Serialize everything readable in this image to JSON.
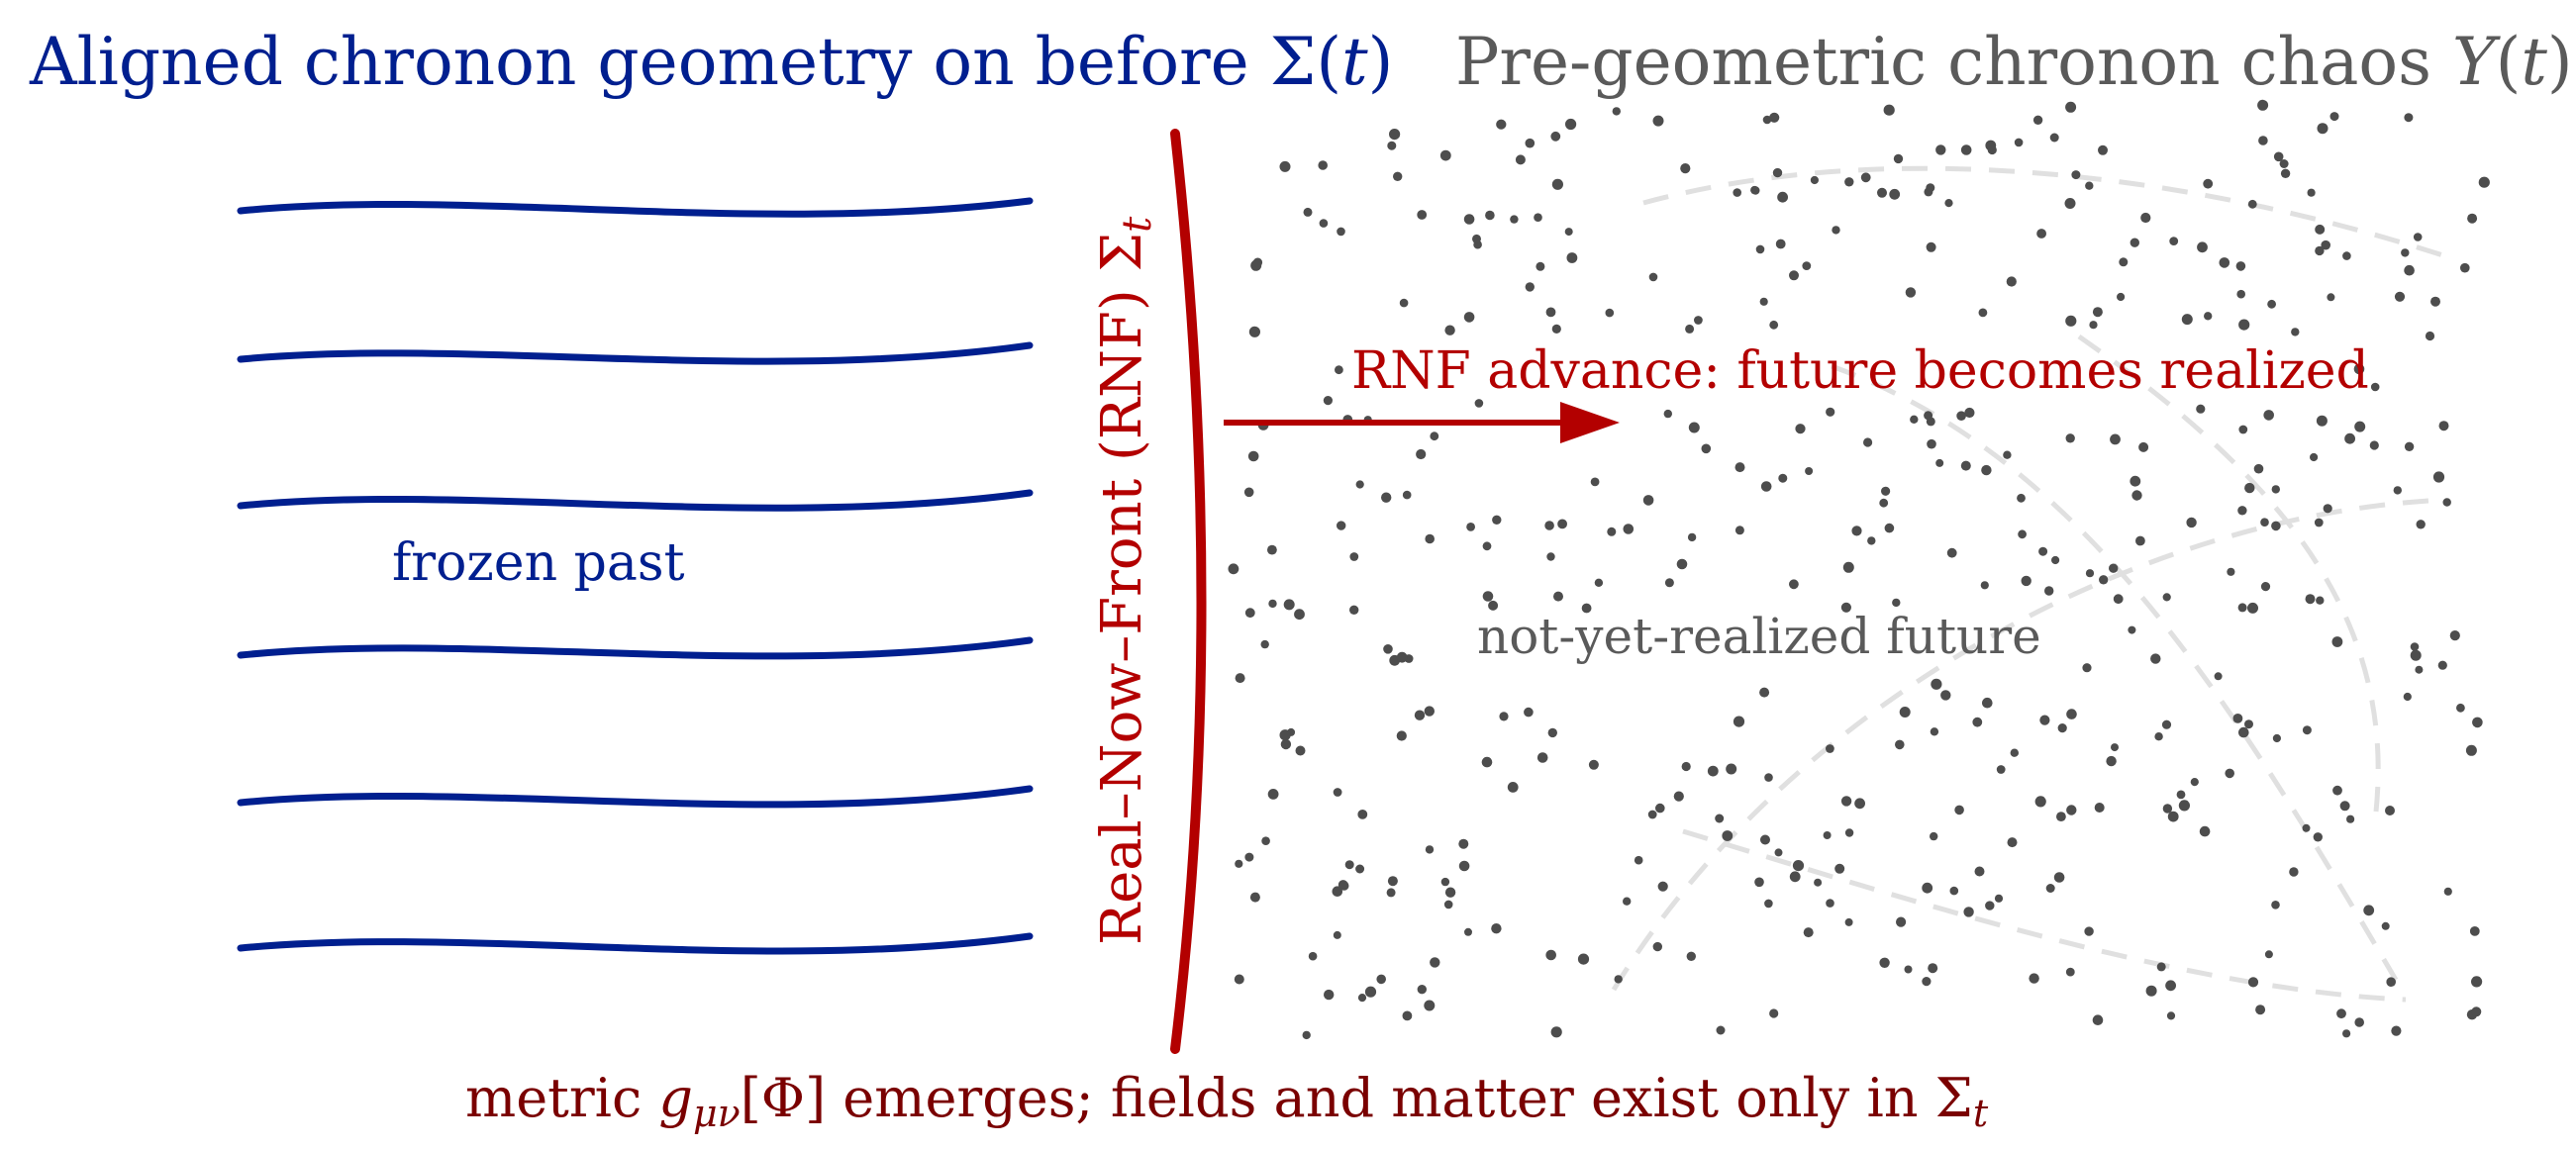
{
  "diagram": {
    "title_left": {
      "text": "Aligned chronon geometry on before Σ(",
      "var": "t",
      "close": ")"
    },
    "title_right": {
      "text": "Pre-geometric chronon chaos ",
      "symbol": "Υ",
      "open": "(",
      "var": "t",
      "close": ")"
    },
    "rnf_label": {
      "text": "Real–Now–Front (RNF) Σ",
      "sub": "t"
    },
    "advance_label": "RNF advance: future becomes realized",
    "frozen_past_label": "frozen past",
    "future_label": "not-yet-realized future",
    "bottom_caption": {
      "prefix": "metric ",
      "g": "g",
      "g_sub": "μν",
      "bracket": "[Φ]",
      "suffix": " emerges; fields and matter exist only in Σ",
      "sigma_sub": "t"
    },
    "colors": {
      "past_blue": "#001f8f",
      "rnf_red": "#b30000",
      "caption_dark_red": "#7a0000",
      "chaos_gray": "#5a5a5a",
      "dot_gray": "#4d4d4d",
      "dash_gray": "#e0e0e0"
    }
  }
}
